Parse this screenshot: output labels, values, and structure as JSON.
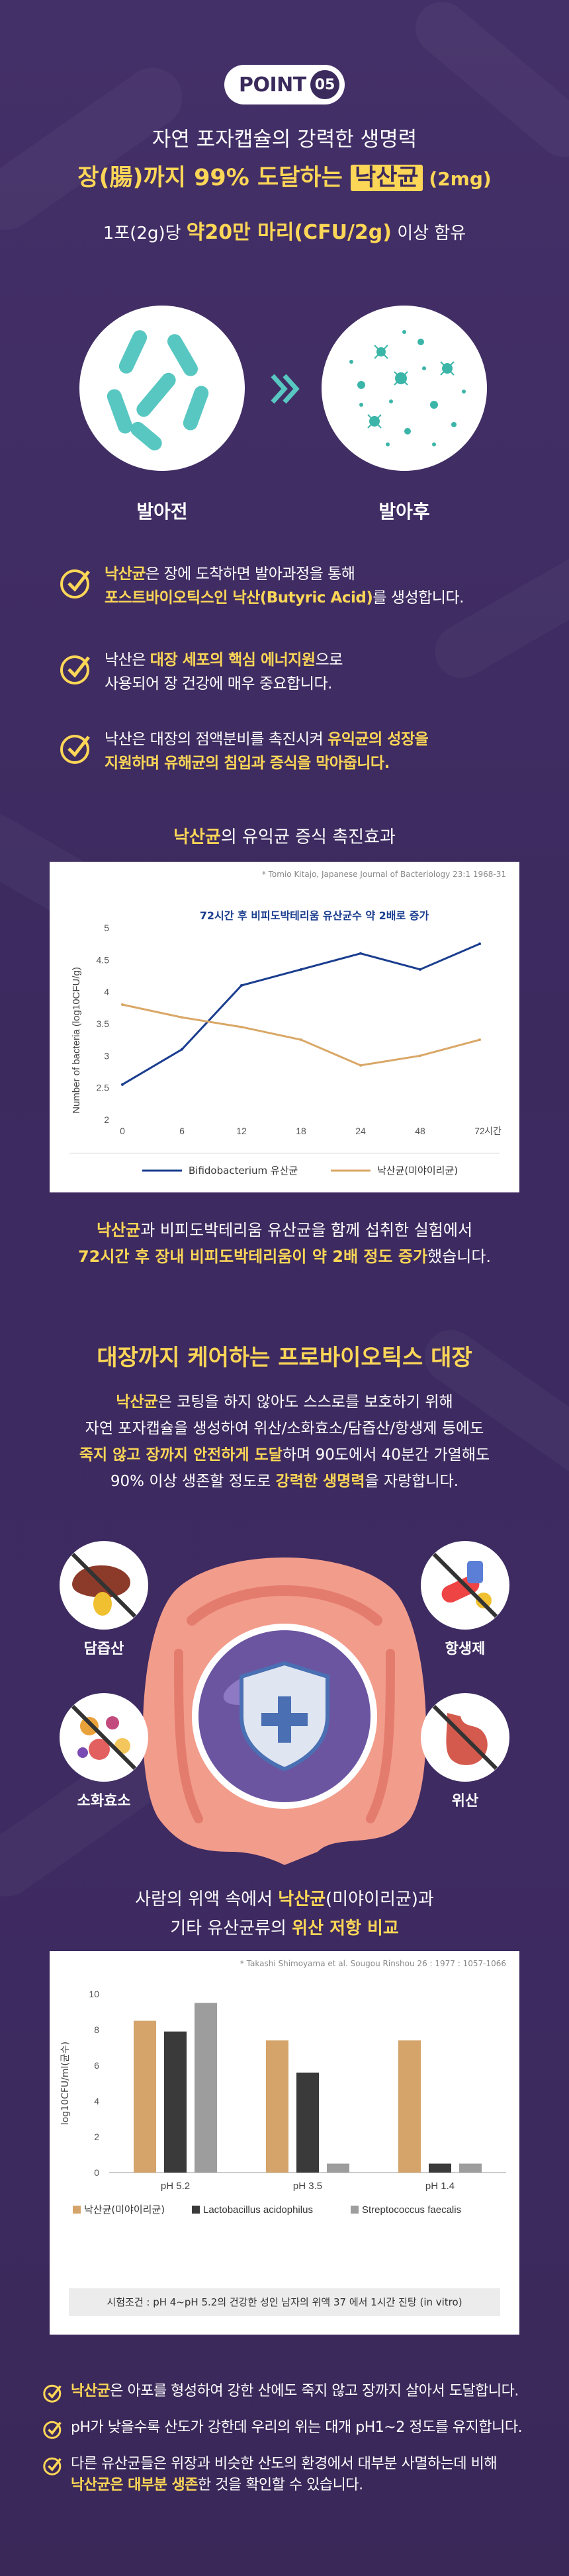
{
  "header": {
    "badge_text": "POINT",
    "badge_num": "05",
    "line1": "자연 포자캡슐의 강력한 생명력",
    "line2_a": "장(腸)까지 99% 도달하는 ",
    "line2_b": "낙산균",
    "line2_c": " (2mg)",
    "line3_a": "1포(2g)당 ",
    "line3_b": "약20만 마리(CFU/2g)",
    "line3_c": " 이상 함유"
  },
  "germination": {
    "before_label": "발아전",
    "after_label": "발아후"
  },
  "checks": [
    {
      "l1_a": "낙산균",
      "l1_b": "은 장에 도착하면 발아과정을 통해",
      "l2_a": "포스트바이오틱스인 낙산(Butyric Acid)",
      "l2_b": "를 생성합니다."
    },
    {
      "l1_a": "낙산은 ",
      "l1_b": "대장 세포의 핵심 에너지원",
      "l1_c": "으로",
      "l2": "사용되어 장 건강에 매우 중요합니다."
    },
    {
      "l1_a": "낙산은 대장의 점액분비를 촉진시켜 ",
      "l1_b": "유익균의 성장을",
      "l2": "지원하며 유해균의 침입과 증식을 막아줍니다."
    }
  ],
  "chart1": {
    "heading_a": "낙산균",
    "heading_b": "의 유익균 증식 촉진효과",
    "source": "* Tomio Kitajo, Japanese Journal of Bacteriology 23:1 1968-31",
    "annotation": "72시간 후 비피도박테리움 유산균수 약 2배로 증가",
    "unit": "시간"
  },
  "chart_data": [
    {
      "type": "line",
      "title": "",
      "xlabel": "",
      "ylabel": "Number of bacteria (log10CFU/g)",
      "categories": [
        "0",
        "6",
        "12",
        "18",
        "24",
        "48",
        "72"
      ],
      "x_unit": "시간",
      "ylim": [
        2,
        5
      ],
      "yticks": [
        "2",
        "2.5",
        "3",
        "3.5",
        "4",
        "4.5",
        "5"
      ],
      "series": [
        {
          "name": "Bifidobacterium 유산균",
          "color": "#1a3d8f",
          "values": [
            2.55,
            3.1,
            4.1,
            4.35,
            4.6,
            4.35,
            4.75
          ]
        },
        {
          "name": "낙산균(미야이리균)",
          "color": "#d9a766",
          "values": [
            3.8,
            3.6,
            3.45,
            3.25,
            2.85,
            3.0,
            3.25
          ]
        }
      ],
      "grid": false,
      "legend": "bottom"
    },
    {
      "type": "bar",
      "title": "",
      "ylabel": "log10CFU/ml(균수)",
      "categories": [
        "pH 5.2",
        "pH 3.5",
        "pH 1.4"
      ],
      "ylim": [
        0,
        10
      ],
      "yticks": [
        "0",
        "2",
        "4",
        "6",
        "8",
        "10"
      ],
      "series": [
        {
          "name": "낙산균(미야이리균)",
          "color": "#d4a46a",
          "values": [
            8.5,
            7.4,
            7.4
          ]
        },
        {
          "name": "Lactobacillus acidophilus",
          "color": "#3a3a3a",
          "values": [
            7.9,
            5.6,
            0.5
          ]
        },
        {
          "name": "Streptococcus faecalis",
          "color": "#9d9d9d",
          "values": [
            9.5,
            0.5,
            0.5
          ]
        }
      ],
      "grid": false,
      "legend": "bottom"
    }
  ],
  "chart1_caption": {
    "l1_a": "낙산균",
    "l1_b": "과 비피도박테리움 유산균을 함께 섭취한 실험에서",
    "l2": "72시간 후 장내 비피도박테리움이 약 2배 정도 증가",
    "l2_b": "했습니다."
  },
  "section2": {
    "title": "대장까지 케어하는 프로바이오틱스 대장",
    "p1_a": "낙산균",
    "p1_b": "은 코팅을 하지 않아도 스스로를 보호하기 위해",
    "p2": "자연 포자캡슐을 생성하여 위산/소화효소/담즙산/항생제 등에도",
    "p3_a": "죽지 않고 장까지 안전하게 도달",
    "p3_b": "하며 90도에서 40분간 가열해도",
    "p4_a": "90% 이상 생존할 정도로 ",
    "p4_b": "강력한 생명력",
    "p4_c": "을 자랑합니다."
  },
  "threats": {
    "bile": "담즙산",
    "antibiotic": "항생제",
    "enzyme": "소화효소",
    "acid": "위산"
  },
  "chart2": {
    "heading1_a": "사람의 위액 속에서 ",
    "heading1_b": "낙산균",
    "heading1_c": "(미야이리균)과",
    "heading2_a": "기타 유산균류의 ",
    "heading2_b": "위산 저항 비교",
    "source": "* Takashi Shimoyama et al. Sougou Rinshou 26 : 1977 : 1057-1066",
    "condition": "시험조건 : pH 4~pH 5.2의 건강한 성인 남자의 위액 37 에서 1시간 진탕 (in vitro)"
  },
  "bottom_checks": [
    {
      "a": "낙산균",
      "b": "은 아포를 형성하여 강한 산에도 죽지 않고 장까지 살아서 도달합니다."
    },
    {
      "a": "",
      "b": "pH가 낮을수록 산도가 강한데 우리의 위는 대개 pH1~2 정도를 유지합니다."
    },
    {
      "a": "",
      "b": "다른 유산균들은 위장과 비슷한 산도의 환경에서 대부분 사멸하는데 비해",
      "l2_a": "낙산균은 대부분 생존",
      "l2_b": "한 것을 확인할 수 있습니다."
    }
  ],
  "colors": {
    "background": "#3f2c63",
    "accent_yellow": "#fcd657",
    "teal": "#58c7c1",
    "navy_line": "#1a3d8f",
    "tan": "#d9a766"
  }
}
